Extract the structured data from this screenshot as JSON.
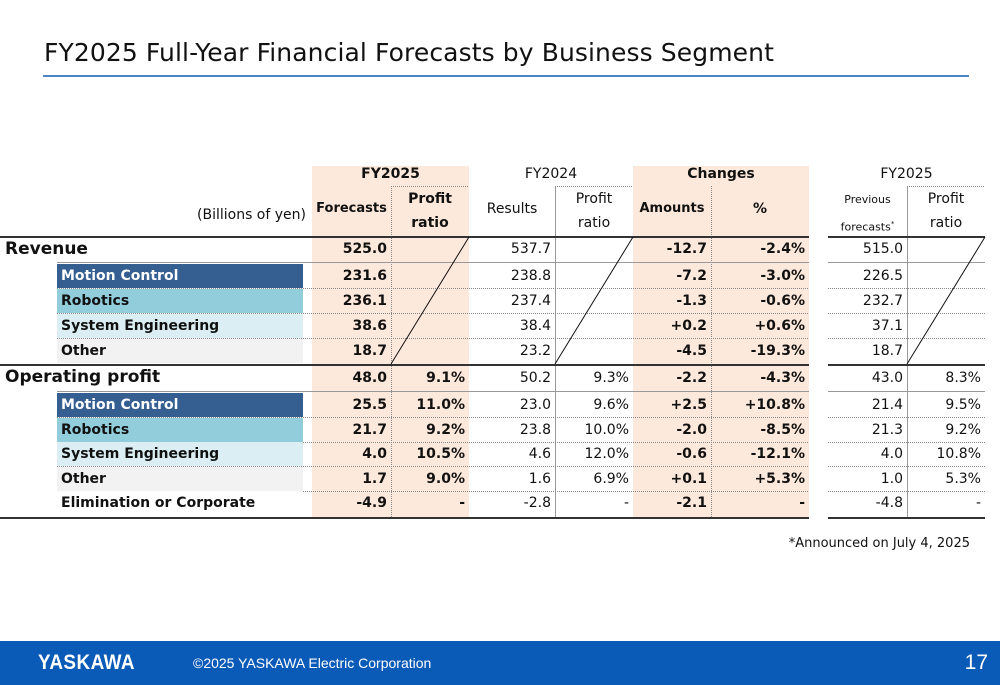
{
  "title": "FY2025 Full-Year Financial Forecasts by Business Segment",
  "table": {
    "unit_label": "(Billions of yen)",
    "group_headers": {
      "fy2025": "FY2025",
      "fy2024": "FY2024",
      "changes": "Changes",
      "fy2025_prev": "FY2025"
    },
    "column_headers": {
      "forecasts": "Forecasts",
      "profit_ratio_1": "Profit",
      "profit_ratio_2": "ratio",
      "results": "Results",
      "amounts": "Amounts",
      "percent": "%",
      "previous_1": "Previous",
      "previous_2": "forecasts",
      "previous_mark": "*"
    },
    "revenue": {
      "label": "Revenue",
      "total": {
        "forecast": "525.0",
        "results": "537.7",
        "amount": "-12.7",
        "pct": "-2.4%",
        "prev": "515.0"
      },
      "segments": [
        {
          "label": "Motion Control",
          "forecast": "231.6",
          "results": "238.8",
          "amount": "-7.2",
          "pct": "-3.0%",
          "prev": "226.5"
        },
        {
          "label": "Robotics",
          "forecast": "236.1",
          "results": "237.4",
          "amount": "-1.3",
          "pct": "-0.6%",
          "prev": "232.7"
        },
        {
          "label": "System Engineering",
          "forecast": "38.6",
          "results": "38.4",
          "amount": "+0.2",
          "pct": "+0.6%",
          "prev": "37.1"
        },
        {
          "label": "Other",
          "forecast": "18.7",
          "results": "23.2",
          "amount": "-4.5",
          "pct": "-19.3%",
          "prev": "18.7"
        }
      ]
    },
    "operating_profit": {
      "label": "Operating profit",
      "total": {
        "forecast": "48.0",
        "ratio": "9.1%",
        "results": "50.2",
        "results_ratio": "9.3%",
        "amount": "-2.2",
        "pct": "-4.3%",
        "prev": "43.0",
        "prev_ratio": "8.3%"
      },
      "segments": [
        {
          "label": "Motion Control",
          "forecast": "25.5",
          "ratio": "11.0%",
          "results": "23.0",
          "results_ratio": "9.6%",
          "amount": "+2.5",
          "pct": "+10.8%",
          "prev": "21.4",
          "prev_ratio": "9.5%"
        },
        {
          "label": "Robotics",
          "forecast": "21.7",
          "ratio": "9.2%",
          "results": "23.8",
          "results_ratio": "10.0%",
          "amount": "-2.0",
          "pct": "-8.5%",
          "prev": "21.3",
          "prev_ratio": "9.2%"
        },
        {
          "label": "System Engineering",
          "forecast": "4.0",
          "ratio": "10.5%",
          "results": "4.6",
          "results_ratio": "12.0%",
          "amount": "-0.6",
          "pct": "-12.1%",
          "prev": "4.0",
          "prev_ratio": "10.8%"
        },
        {
          "label": "Other",
          "forecast": "1.7",
          "ratio": "9.0%",
          "results": "1.6",
          "results_ratio": "6.9%",
          "amount": "+0.1",
          "pct": "+5.3%",
          "prev": "1.0",
          "prev_ratio": "5.3%"
        },
        {
          "label": "Elimination or Corporate",
          "forecast": "-4.9",
          "ratio": "-",
          "results": "-2.8",
          "results_ratio": "-",
          "amount": "-2.1",
          "pct": "-",
          "prev": "-4.8",
          "prev_ratio": "-"
        }
      ]
    }
  },
  "footnote": "*Announced on July 4, 2025",
  "footer": {
    "logo": "YASKAWA",
    "copyright": "©2025 YASKAWA Electric Corporation",
    "page_number": "17"
  },
  "colors": {
    "accent_rule": "#4a86c8",
    "footer_bg": "#0a5ab8",
    "highlight": "#fde9db",
    "motion_control": "#365f91",
    "robotics": "#92cddc",
    "system_engineering": "#daeef3",
    "other": "#f2f2f2"
  }
}
